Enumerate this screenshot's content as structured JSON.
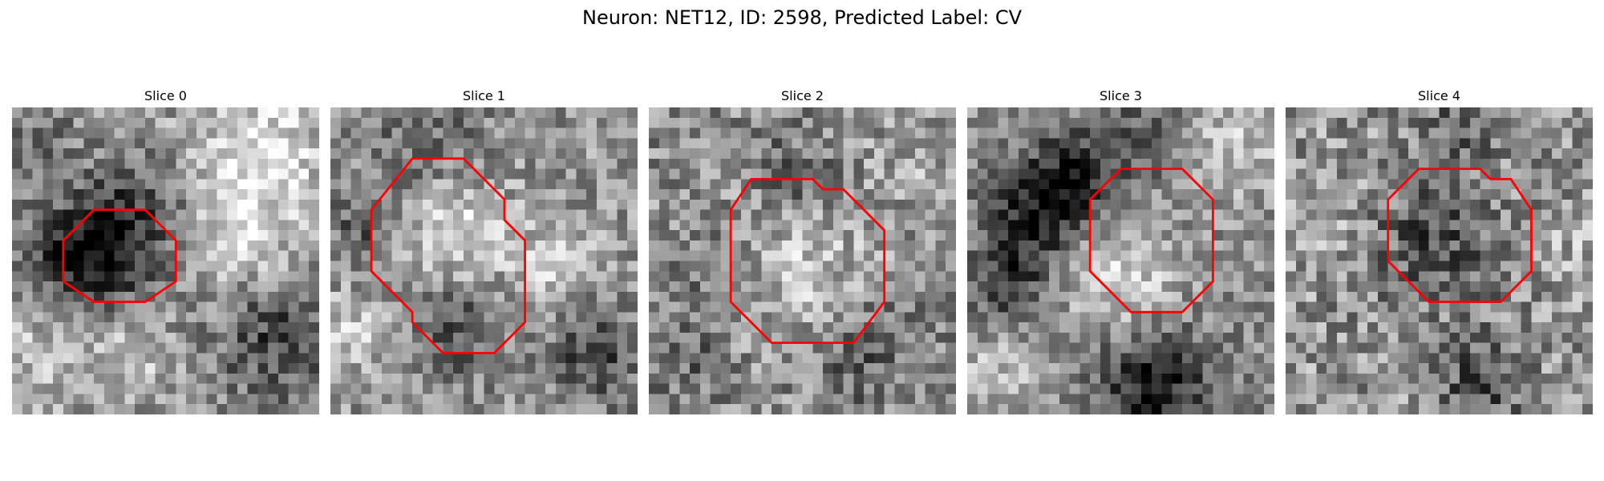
{
  "figure": {
    "title": "Neuron: NET12, ID: 2598, Predicted Label: CV"
  },
  "contour_color": "#ff0000",
  "panels": [
    {
      "title": "Slice 0",
      "contour": [
        [
          5,
          13
        ],
        [
          8,
          10
        ],
        [
          13,
          10
        ],
        [
          16,
          13
        ],
        [
          16,
          17
        ],
        [
          13,
          19
        ],
        [
          8,
          19
        ],
        [
          5,
          17
        ]
      ],
      "blobs": [
        {
          "x": 7,
          "y": 15,
          "r": 3.5,
          "v": -0.5
        },
        {
          "x": 11,
          "y": 13,
          "r": 4.5,
          "v": -0.18
        },
        {
          "x": 12,
          "y": 9,
          "r": 3.5,
          "v": -0.18
        },
        {
          "x": 24,
          "y": 5,
          "r": 5,
          "v": 0.32
        },
        {
          "x": 22,
          "y": 13,
          "r": 3,
          "v": 0.28
        },
        {
          "x": 26,
          "y": 23,
          "r": 4,
          "v": -0.32
        },
        {
          "x": 3,
          "y": 24,
          "r": 4,
          "v": 0.18
        },
        {
          "x": 12,
          "y": 24,
          "r": 3,
          "v": 0.2
        },
        {
          "x": 2,
          "y": 4,
          "r": 3,
          "v": -0.15
        }
      ],
      "base": 0.58,
      "noise": 0.22
    },
    {
      "title": "Slice 1",
      "contour": [
        [
          4,
          10
        ],
        [
          8,
          5
        ],
        [
          13,
          5
        ],
        [
          17,
          9
        ],
        [
          17,
          11
        ],
        [
          19,
          13
        ],
        [
          19,
          21
        ],
        [
          16,
          24
        ],
        [
          11,
          24
        ],
        [
          8,
          21
        ],
        [
          8,
          20
        ],
        [
          4,
          16
        ]
      ],
      "blobs": [
        {
          "x": 11,
          "y": 12,
          "r": 4.5,
          "v": 0.3
        },
        {
          "x": 4,
          "y": 12,
          "r": 3,
          "v": -0.28
        },
        {
          "x": 9,
          "y": 4,
          "r": 4,
          "v": -0.22
        },
        {
          "x": 12,
          "y": 21,
          "r": 3.5,
          "v": -0.3
        },
        {
          "x": 26,
          "y": 24,
          "r": 3.5,
          "v": -0.3
        },
        {
          "x": 22,
          "y": 16,
          "r": 3,
          "v": 0.22
        },
        {
          "x": 2,
          "y": 22,
          "r": 3,
          "v": 0.18
        }
      ],
      "base": 0.58,
      "noise": 0.22
    },
    {
      "title": "Slice 2",
      "contour": [
        [
          8,
          10
        ],
        [
          10,
          7
        ],
        [
          16,
          7
        ],
        [
          17,
          8
        ],
        [
          19,
          8
        ],
        [
          23,
          12
        ],
        [
          23,
          19
        ],
        [
          20,
          23
        ],
        [
          12,
          23
        ],
        [
          9,
          20
        ],
        [
          8,
          19
        ]
      ],
      "blobs": [
        {
          "x": 14,
          "y": 15,
          "r": 5.5,
          "v": 0.22
        },
        {
          "x": 14,
          "y": 7,
          "r": 3,
          "v": -0.22
        },
        {
          "x": 7,
          "y": 16,
          "r": 3,
          "v": -0.18
        },
        {
          "x": 21,
          "y": 24,
          "r": 3.5,
          "v": -0.2
        },
        {
          "x": 4,
          "y": 24,
          "r": 3,
          "v": -0.15
        },
        {
          "x": 26,
          "y": 5,
          "r": 3,
          "v": 0.12
        }
      ],
      "base": 0.55,
      "noise": 0.24
    },
    {
      "title": "Slice 3",
      "contour": [
        [
          12,
          9
        ],
        [
          15,
          6
        ],
        [
          21,
          6
        ],
        [
          24,
          9
        ],
        [
          24,
          17
        ],
        [
          21,
          20
        ],
        [
          16,
          20
        ],
        [
          12,
          16
        ]
      ],
      "blobs": [
        {
          "x": 7,
          "y": 10,
          "r": 3.5,
          "v": -0.45
        },
        {
          "x": 4,
          "y": 17,
          "r": 3,
          "v": -0.3
        },
        {
          "x": 11,
          "y": 6,
          "r": 3,
          "v": -0.3
        },
        {
          "x": 15,
          "y": 17,
          "r": 4,
          "v": 0.3
        },
        {
          "x": 18,
          "y": 27,
          "r": 4,
          "v": -0.45
        },
        {
          "x": 26,
          "y": 4,
          "r": 3.5,
          "v": 0.22
        },
        {
          "x": 3,
          "y": 26,
          "r": 3,
          "v": 0.2
        },
        {
          "x": 17,
          "y": 3,
          "r": 3,
          "v": -0.18
        }
      ],
      "base": 0.55,
      "noise": 0.2
    },
    {
      "title": "Slice 4",
      "contour": [
        [
          10,
          9
        ],
        [
          13,
          6
        ],
        [
          19,
          6
        ],
        [
          20,
          7
        ],
        [
          22,
          7
        ],
        [
          24,
          10
        ],
        [
          24,
          16
        ],
        [
          21,
          19
        ],
        [
          14,
          19
        ],
        [
          10,
          15
        ]
      ],
      "blobs": [
        {
          "x": 15,
          "y": 13,
          "r": 4.5,
          "v": -0.28
        },
        {
          "x": 17,
          "y": 2,
          "r": 2.5,
          "v": -0.2
        },
        {
          "x": 19,
          "y": 27,
          "r": 3,
          "v": -0.3
        },
        {
          "x": 3,
          "y": 10,
          "r": 3,
          "v": 0.1
        },
        {
          "x": 27,
          "y": 14,
          "r": 3,
          "v": 0.1
        }
      ],
      "base": 0.58,
      "noise": 0.26
    }
  ]
}
